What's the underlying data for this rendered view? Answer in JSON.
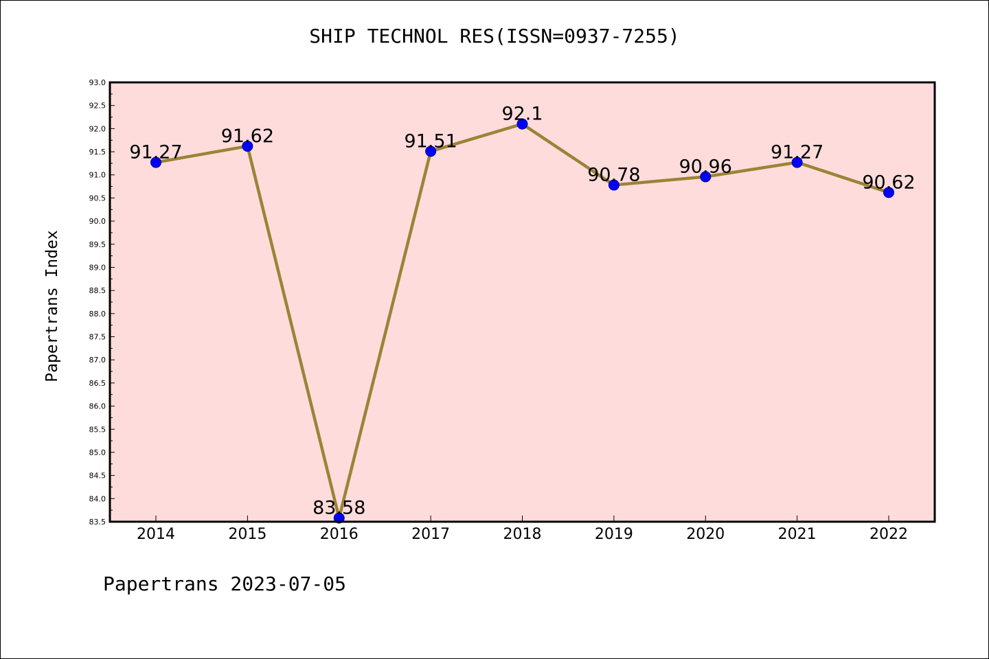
{
  "chart_data": {
    "type": "line",
    "title": "SHIP TECHNOL RES(ISSN=0937-7255)",
    "ylabel": "Papertrans Index",
    "xlabel": "",
    "categories": [
      "2014",
      "2015",
      "2016",
      "2017",
      "2018",
      "2019",
      "2020",
      "2021",
      "2022"
    ],
    "series": [
      {
        "values": [
          91.27,
          91.62,
          83.58,
          91.51,
          92.1,
          90.78,
          90.96,
          91.27,
          90.62
        ],
        "labels": [
          "91.27",
          "91.62",
          "83.58",
          "91.51",
          "92.1",
          "90.78",
          "90.96",
          "91.27",
          "90.62"
        ]
      }
    ],
    "ylim": [
      83.5,
      93.0
    ],
    "ytick_step": 0.5,
    "grid": false,
    "colors": {
      "plot_background": "#ffdcdc",
      "line": "#9a8436",
      "marker": "#0000ff"
    }
  },
  "footer": "Papertrans 2023-07-05"
}
